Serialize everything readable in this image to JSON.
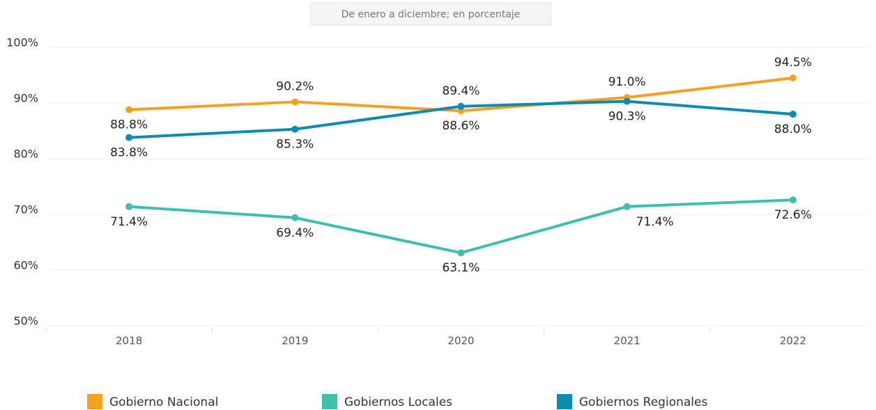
{
  "chart_data": {
    "type": "line",
    "subtitle": "De enero a diciembre; en porcentaje",
    "categories": [
      "2018",
      "2019",
      "2020",
      "2021",
      "2022"
    ],
    "series": [
      {
        "name": "Gobierno Nacional",
        "color": "#f5a023",
        "values": [
          88.8,
          90.2,
          88.6,
          91.0,
          94.5
        ],
        "value_labels": [
          "88.8%",
          "90.2%",
          "88.6%",
          "91.0%",
          "94.5%"
        ]
      },
      {
        "name": "Gobiernos Locales",
        "color": "#3dbfad",
        "values": [
          71.4,
          69.4,
          63.1,
          71.4,
          72.6
        ],
        "value_labels": [
          "71.4%",
          "69.4%",
          "63.1%",
          "71.4%",
          "72.6%"
        ]
      },
      {
        "name": "Gobiernos Regionales",
        "color": "#0b8ab3",
        "values": [
          83.8,
          85.3,
          89.4,
          90.3,
          88.0
        ],
        "value_labels": [
          "83.8%",
          "85.3%",
          "89.4%",
          "90.3%",
          "88.0%"
        ]
      }
    ],
    "ylim": [
      50,
      100
    ],
    "yticks": [
      {
        "value": 50,
        "label": "50%"
      },
      {
        "value": 60,
        "label": "60%"
      },
      {
        "value": 70,
        "label": "70%"
      },
      {
        "value": 80,
        "label": "80%"
      },
      {
        "value": 90,
        "label": "90%"
      },
      {
        "value": 100,
        "label": "100%"
      }
    ],
    "grid": true,
    "legend": "bottom"
  }
}
